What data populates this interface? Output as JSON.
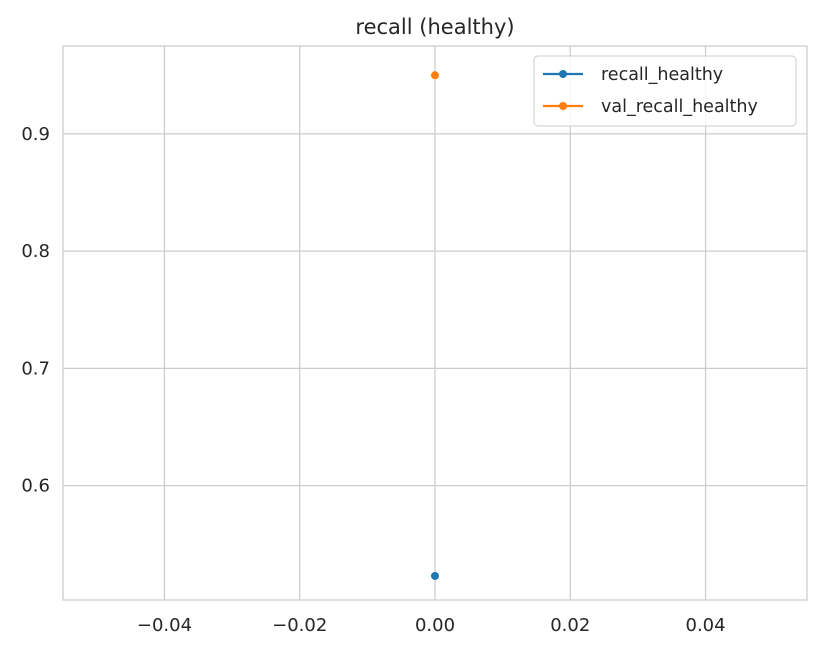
{
  "chart_data": {
    "type": "line",
    "title": "recall (healthy)",
    "xlabel": "",
    "ylabel": "",
    "xlim": [
      -0.055,
      0.055
    ],
    "ylim": [
      0.5025,
      0.975
    ],
    "x_ticks": [
      -0.04,
      -0.02,
      0.0,
      0.02,
      0.04
    ],
    "x_tick_labels": [
      "−0.04",
      "−0.02",
      "0.00",
      "0.02",
      "0.04"
    ],
    "y_ticks": [
      0.6,
      0.7,
      0.8,
      0.9
    ],
    "y_tick_labels": [
      "0.6",
      "0.7",
      "0.8",
      "0.9"
    ],
    "grid": true,
    "legend_position": "top-right",
    "series": [
      {
        "name": "recall_healthy",
        "color": "#1f77b4",
        "marker": "circle",
        "x": [
          0
        ],
        "y": [
          0.523
        ]
      },
      {
        "name": "val_recall_healthy",
        "color": "#ff7f0e",
        "marker": "circle",
        "x": [
          0
        ],
        "y": [
          0.95
        ]
      }
    ]
  }
}
